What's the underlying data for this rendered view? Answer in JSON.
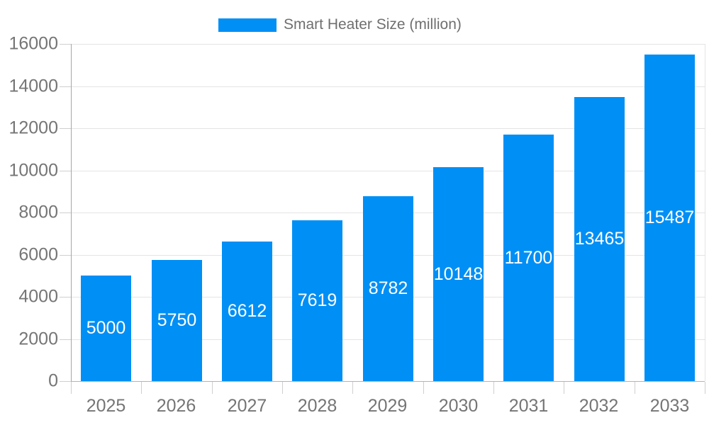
{
  "legend": {
    "label": "Smart Heater Size (million)"
  },
  "colors": {
    "bar": "#008FF5",
    "grid": "#e4e4e4",
    "baseline": "#b3b3b3",
    "y_axis": "#a6a6a6",
    "tick": "#cfcfcf",
    "axis_text": "#757575",
    "value_label_text": "#ffffff"
  },
  "chart_data": {
    "type": "bar",
    "title": "Smart Heater Size (million)",
    "categories": [
      "2025",
      "2026",
      "2027",
      "2028",
      "2029",
      "2030",
      "2031",
      "2032",
      "2033"
    ],
    "values": [
      5000,
      5750,
      6612,
      7619,
      8782,
      10148,
      11700,
      13465,
      15487
    ],
    "series_name": "Smart Heater Size (million)",
    "xlabel": "",
    "ylabel": "",
    "ylim": [
      0,
      16000
    ],
    "yticks": [
      0,
      2000,
      4000,
      6000,
      8000,
      10000,
      12000,
      14000,
      16000
    ],
    "ytick_labels": [
      "0",
      "2000",
      "4000",
      "6000",
      "8000",
      "10000",
      "12000",
      "14000",
      "16000"
    ],
    "grid": true,
    "legend_position": "top",
    "value_labels": "inside-center"
  }
}
